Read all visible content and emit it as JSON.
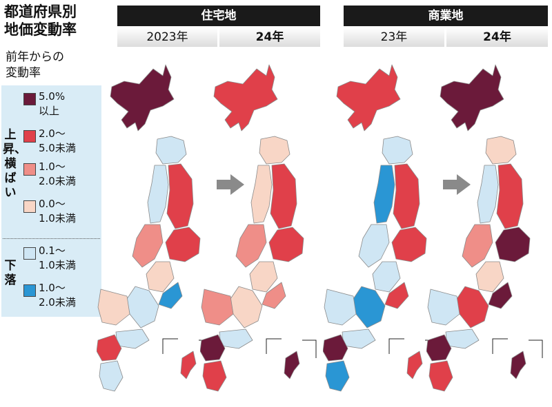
{
  "title": {
    "line1": "都道府県別",
    "line2": "地価変動率"
  },
  "subtitle": {
    "line1": "前年からの",
    "line2": "変動率"
  },
  "headers": {
    "residential": "住宅地",
    "commercial": "商業地"
  },
  "years": {
    "res_2023": "2023年",
    "res_2024": "24年",
    "com_2023": "23年",
    "com_2024": "24年"
  },
  "legend": {
    "rise_label": "上昇、横ばい",
    "fall_label": "下落",
    "items": [
      {
        "line1": "5.0%",
        "line2": "以上",
        "color": "#6b1a3a"
      },
      {
        "line1": "2.0～",
        "line2": "5.0未満",
        "color": "#e0404a"
      },
      {
        "line1": "1.0～",
        "line2": "2.0未満",
        "color": "#ef8e88"
      },
      {
        "line1": "0.0～",
        "line2": "1.0未満",
        "color": "#f8d6c6"
      },
      {
        "line1": "0.1～",
        "line2": "1.0未満",
        "color": "#cfe6f4"
      },
      {
        "line1": "1.0～",
        "line2": "2.0未満",
        "color": "#2a96d4"
      }
    ]
  },
  "arrow_color": "#8a8a8a",
  "maps": [
    {
      "name": "residential-2023",
      "colors": {
        "hokkaido": "#6b1a3a",
        "tohoku_n": "#cfe6f4",
        "tohoku_e": "#e0404a",
        "tohoku_w": "#cfe6f4",
        "kanto": "#e0404a",
        "hokuriku": "#ef8e88",
        "chubu": "#f8d6c6",
        "tokai": "#2a96d4",
        "kinki": "#cfe6f4",
        "chugoku": "#f8d6c6",
        "shikoku": "#cfe6f4",
        "kyushu_n": "#e0404a",
        "kyushu_s": "#cfe6f4",
        "okinawa": "#e0404a"
      }
    },
    {
      "name": "residential-2024",
      "colors": {
        "hokkaido": "#e0404a",
        "tohoku_n": "#f8d6c6",
        "tohoku_e": "#e0404a",
        "tohoku_w": "#f8d6c6",
        "kanto": "#e0404a",
        "hokuriku": "#ef8e88",
        "chubu": "#f8d6c6",
        "tokai": "#ef8e88",
        "kinki": "#f8d6c6",
        "chugoku": "#ef8e88",
        "shikoku": "#cfe6f4",
        "kyushu_n": "#6b1a3a",
        "kyushu_s": "#e0404a",
        "okinawa": "#6b1a3a"
      }
    },
    {
      "name": "commercial-2023",
      "colors": {
        "hokkaido": "#e0404a",
        "tohoku_n": "#cfe6f4",
        "tohoku_e": "#e0404a",
        "tohoku_w": "#2a96d4",
        "kanto": "#e0404a",
        "hokuriku": "#cfe6f4",
        "chubu": "#cfe6f4",
        "tokai": "#e0404a",
        "kinki": "#2a96d4",
        "chugoku": "#cfe6f4",
        "shikoku": "#cfe6f4",
        "kyushu_n": "#6b1a3a",
        "kyushu_s": "#2a96d4",
        "okinawa": "#e0404a"
      }
    },
    {
      "name": "commercial-2024",
      "colors": {
        "hokkaido": "#6b1a3a",
        "tohoku_n": "#f8d6c6",
        "tohoku_e": "#e0404a",
        "tohoku_w": "#cfe6f4",
        "kanto": "#6b1a3a",
        "hokuriku": "#ef8e88",
        "chubu": "#f8d6c6",
        "tokai": "#6b1a3a",
        "kinki": "#e0404a",
        "chugoku": "#cfe6f4",
        "shikoku": "#cfe6f4",
        "kyushu_n": "#6b1a3a",
        "kyushu_s": "#e0404a",
        "okinawa": "#6b1a3a"
      }
    }
  ]
}
